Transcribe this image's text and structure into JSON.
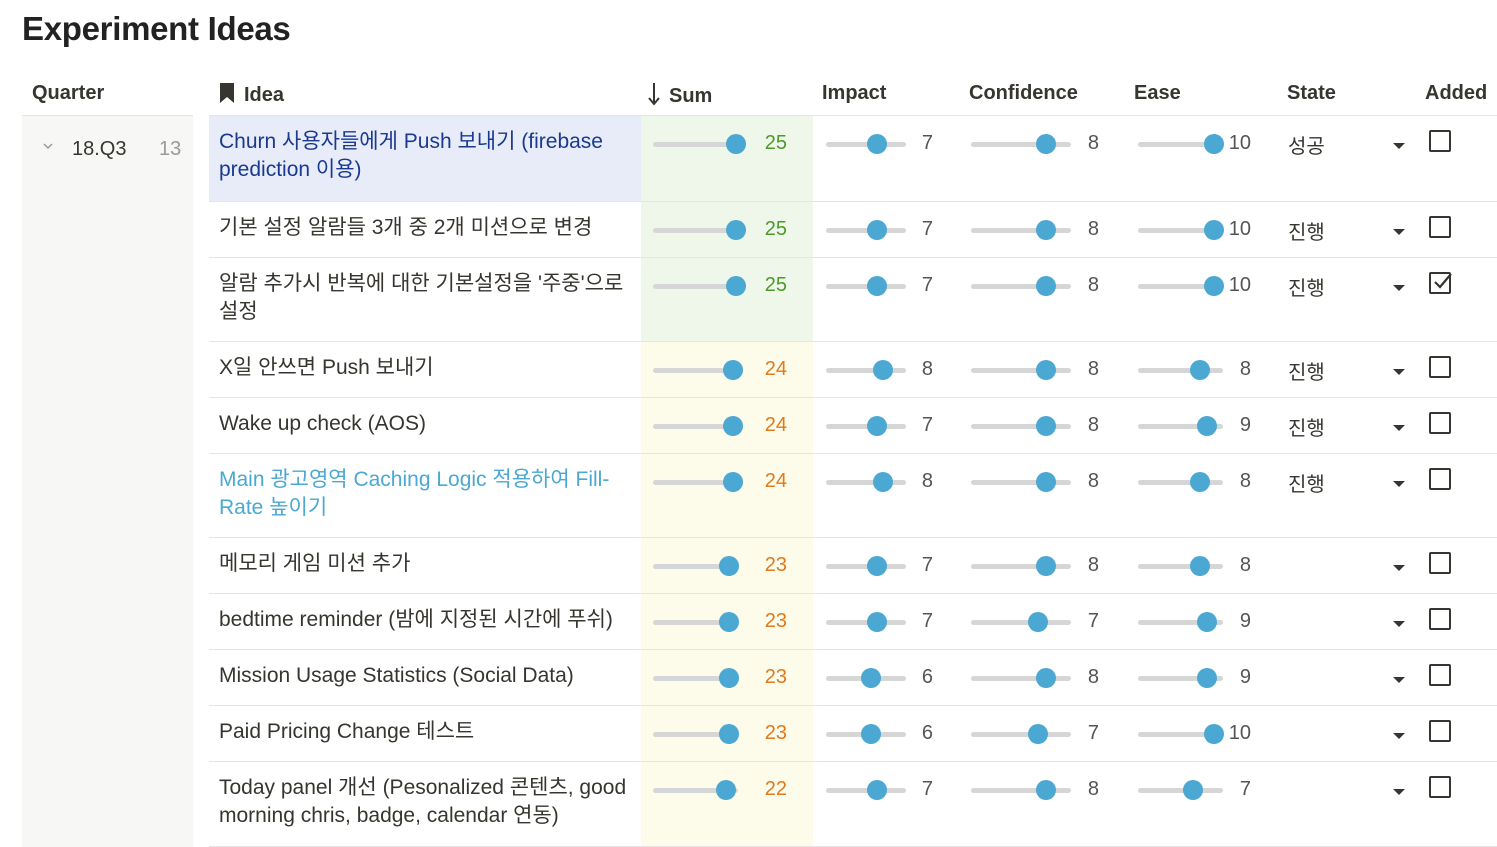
{
  "page": {
    "title": "Experiment Ideas"
  },
  "headers": {
    "quarter": "Quarter",
    "idea": "Idea",
    "sum": "Sum",
    "impact": "Impact",
    "confidence": "Confidence",
    "ease": "Ease",
    "state": "State",
    "added": "Added"
  },
  "group": {
    "label": "18.Q3",
    "count": "13"
  },
  "colors": {
    "slider_knob": "#4aa8d2",
    "sum_high": "#4d9a2a",
    "sum_mid": "#e07a1a",
    "selected_row": "#e8ecf8"
  },
  "rows": [
    {
      "idea": "Churn 사용자들에게 Push 보내기 (firebase prediction 이용)",
      "sum": "25",
      "impact": "7",
      "confidence": "8",
      "ease": "10",
      "state": "성공",
      "added": false
    },
    {
      "idea": "기본 설정 알람들 3개 중 2개 미션으로 변경",
      "sum": "25",
      "impact": "7",
      "confidence": "8",
      "ease": "10",
      "state": "진행",
      "added": false
    },
    {
      "idea": "알람 추가시 반복에 대한 기본설정을 '주중'으로 설정",
      "sum": "25",
      "impact": "7",
      "confidence": "8",
      "ease": "10",
      "state": "진행",
      "added": true
    },
    {
      "idea": "X일 안쓰면 Push 보내기",
      "sum": "24",
      "impact": "8",
      "confidence": "8",
      "ease": "8",
      "state": "진행",
      "added": false
    },
    {
      "idea": "Wake up check (AOS)",
      "sum": "24",
      "impact": "7",
      "confidence": "8",
      "ease": "9",
      "state": "진행",
      "added": false
    },
    {
      "idea": "Main 광고영역 Caching Logic 적용하여 Fill-Rate 높이기",
      "sum": "24",
      "impact": "8",
      "confidence": "8",
      "ease": "8",
      "state": "진행",
      "added": false
    },
    {
      "idea": "메모리 게임 미션 추가",
      "sum": "23",
      "impact": "7",
      "confidence": "8",
      "ease": "8",
      "state": "",
      "added": false
    },
    {
      "idea": "bedtime reminder (밤에 지정된 시간에 푸쉬)",
      "sum": "23",
      "impact": "7",
      "confidence": "7",
      "ease": "9",
      "state": "",
      "added": false
    },
    {
      "idea": "Mission Usage Statistics (Social Data)",
      "sum": "23",
      "impact": "6",
      "confidence": "8",
      "ease": "9",
      "state": "",
      "added": false
    },
    {
      "idea": "Paid Pricing Change 테스트",
      "sum": "23",
      "impact": "6",
      "confidence": "7",
      "ease": "10",
      "state": "",
      "added": false
    },
    {
      "idea": "Today panel 개선 (Pesonalized 콘텐츠, good morning chris, badge, calendar 연동)",
      "sum": "22",
      "impact": "7",
      "confidence": "8",
      "ease": "7",
      "state": "",
      "added": false
    }
  ]
}
